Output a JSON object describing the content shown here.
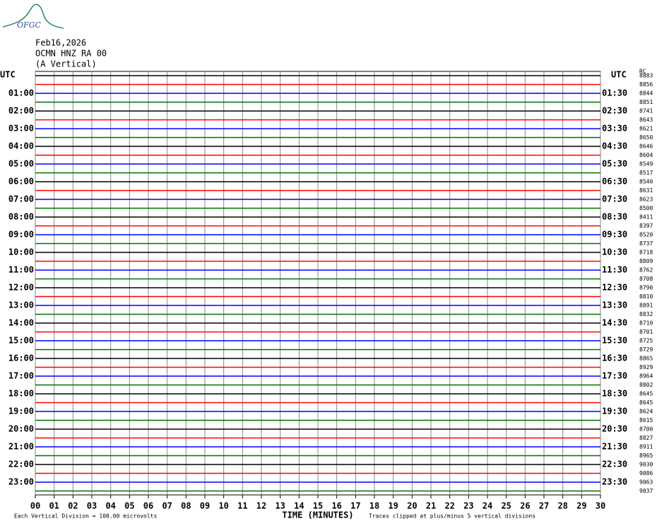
{
  "chart_data": {
    "type": "helicorder",
    "logo": "OFGC",
    "title": "Feb16,2026",
    "subtitle": "OCMN HNZ RA 00",
    "component": "(A Vertical)",
    "left_labels": [
      "UTC",
      "01:00",
      "02:00",
      "03:00",
      "04:00",
      "05:00",
      "06:00",
      "07:00",
      "08:00",
      "09:00",
      "10:00",
      "11:00",
      "12:00",
      "13:00",
      "14:00",
      "15:00",
      "16:00",
      "17:00",
      "18:00",
      "19:00",
      "20:00",
      "21:00",
      "22:00",
      "23:00"
    ],
    "right_labels": [
      "UTC",
      "01:30",
      "02:30",
      "03:30",
      "04:30",
      "05:30",
      "06:30",
      "07:30",
      "08:30",
      "09:30",
      "10:30",
      "11:30",
      "12:30",
      "13:30",
      "14:30",
      "15:30",
      "16:30",
      "17:30",
      "18:30",
      "19:30",
      "20:30",
      "21:30",
      "22:30",
      "23:30"
    ],
    "count_header": "RC",
    "trace_counts": [
      8883,
      8856,
      8844,
      8851,
      8741,
      8643,
      8621,
      8650,
      8646,
      8604,
      8549,
      8517,
      8540,
      8631,
      8623,
      8500,
      8411,
      8397,
      8520,
      8737,
      8718,
      8809,
      8762,
      8708,
      8790,
      8810,
      8891,
      8832,
      8710,
      8701,
      8725,
      8729,
      8865,
      8929,
      8964,
      8802,
      8645,
      8645,
      8624,
      8615,
      8700,
      8827,
      8911,
      8965,
      9030,
      9086,
      9063,
      9037
    ],
    "colors": [
      "#000000",
      "#ff0000",
      "#0000ff",
      "#007000"
    ],
    "xlabel": "TIME (MINUTES)",
    "xlim": [
      0,
      30
    ],
    "xticks": [
      {
        "value": 0,
        "label": "00"
      },
      {
        "value": 1,
        "label": "01"
      },
      {
        "value": 2,
        "label": "02"
      },
      {
        "value": 3,
        "label": "03"
      },
      {
        "value": 4,
        "label": "04"
      },
      {
        "value": 5,
        "label": "05"
      },
      {
        "value": 6,
        "label": "06"
      },
      {
        "value": 7,
        "label": "07"
      },
      {
        "value": 8,
        "label": "08"
      },
      {
        "value": 9,
        "label": "09"
      },
      10,
      11,
      12,
      13,
      14,
      15,
      16,
      17,
      18,
      19,
      20,
      21,
      22,
      23,
      24,
      25,
      26,
      27,
      28,
      29,
      30
    ],
    "scale_note": "Each Vertical Division =  100.00 microvolts",
    "clip_note": "Traces clipped at plus/minus 5 vertical divisions",
    "grid": true
  }
}
